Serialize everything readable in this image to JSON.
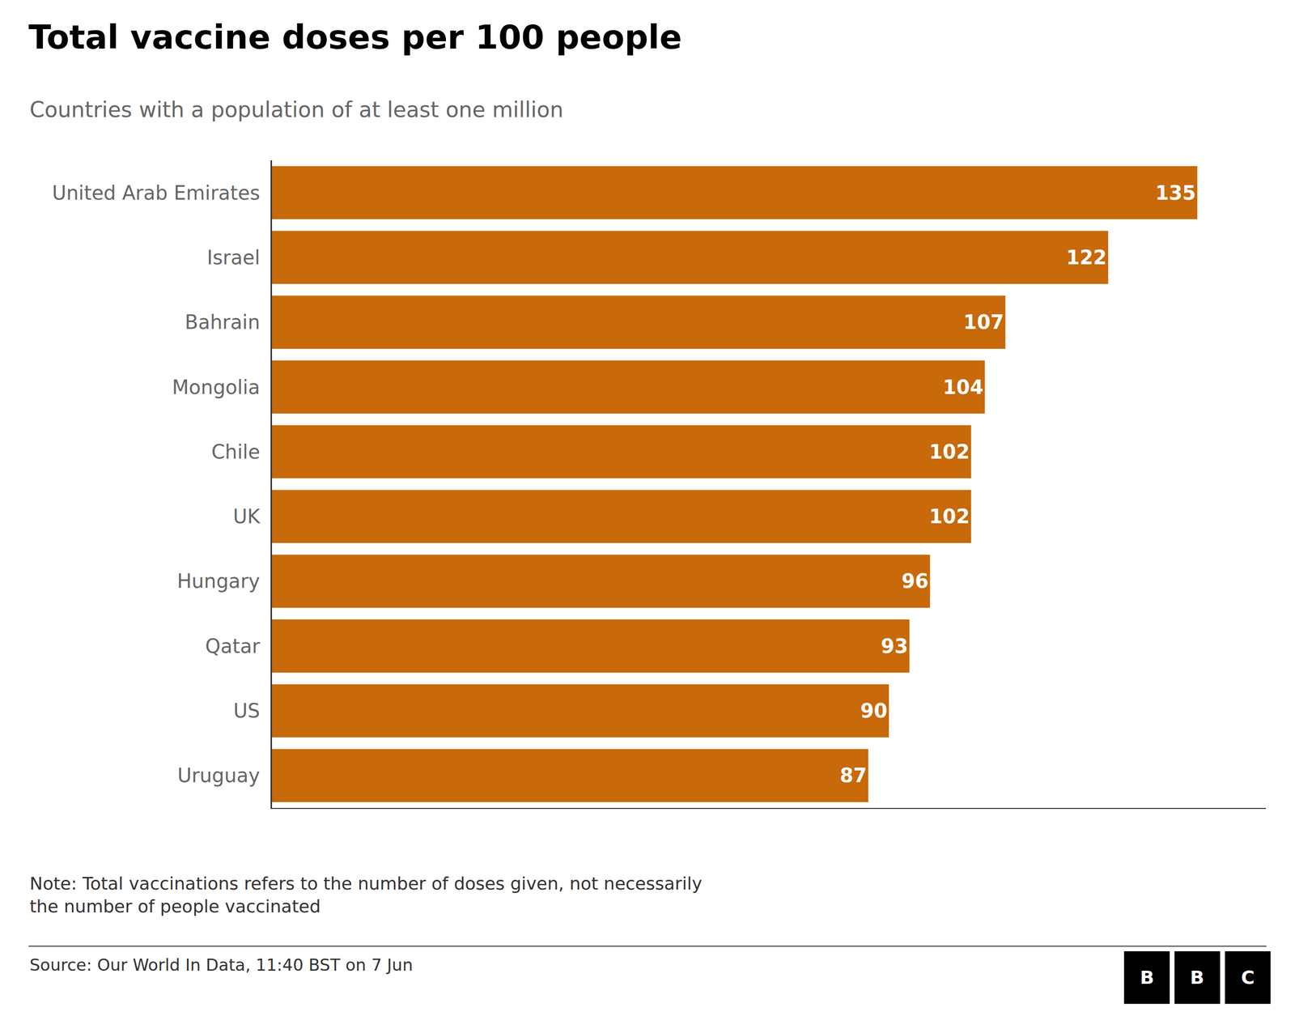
{
  "chart_data": {
    "type": "bar",
    "orientation": "horizontal",
    "title": "Total vaccine doses per 100 people",
    "subtitle": "Countries with a population of at least one million",
    "note": "Note: Total vaccinations refers to the number of doses given, not necessarily\nthe number of people vaccinated",
    "source": "Source: Our World In Data, 11:40 BST on 7 Jun",
    "logo": "BBC",
    "categories": [
      "United Arab Emirates",
      "Israel",
      "Bahrain",
      "Mongolia",
      "Chile",
      "UK",
      "Hungary",
      "Qatar",
      "US",
      "Uruguay"
    ],
    "values": [
      135,
      122,
      107,
      104,
      102,
      102,
      96,
      93,
      90,
      87
    ],
    "color": "#c8690a",
    "xlim": [
      0,
      145
    ],
    "data_labels": true,
    "grid": false,
    "tick_labels": "y"
  }
}
